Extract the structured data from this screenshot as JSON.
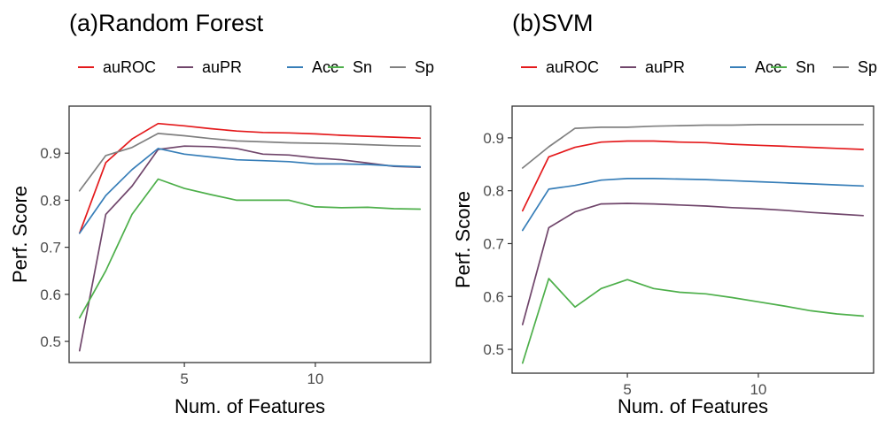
{
  "chart_data": [
    {
      "type": "line",
      "title": "(a)Random Forest",
      "xlabel": "Num. of Features",
      "ylabel": "Perf. Score",
      "xlim": [
        0.6,
        14.4
      ],
      "ylim": [
        0.455,
        1.0
      ],
      "x_ticks": [
        5,
        10
      ],
      "x_tick_labels": [
        "5",
        "10"
      ],
      "y_ticks": [
        0.5,
        0.6,
        0.7,
        0.8,
        0.9
      ],
      "y_tick_labels": [
        "0.5",
        "0.6",
        "0.7",
        "0.8",
        "0.9"
      ],
      "grid": false,
      "legend_position": "top",
      "x": [
        1,
        2,
        3,
        4,
        5,
        6,
        7,
        8,
        9,
        10,
        11,
        12,
        13,
        14
      ],
      "series": [
        {
          "name": "auROC",
          "color": "#e41a1c",
          "values": [
            0.73,
            0.88,
            0.93,
            0.963,
            0.958,
            0.952,
            0.947,
            0.944,
            0.943,
            0.941,
            0.938,
            0.936,
            0.934,
            0.932
          ]
        },
        {
          "name": "auPR",
          "color": "#70466b",
          "values": [
            0.48,
            0.77,
            0.83,
            0.908,
            0.915,
            0.914,
            0.91,
            0.898,
            0.896,
            0.89,
            0.886,
            0.879,
            0.872,
            0.87
          ]
        },
        {
          "name": "Acc",
          "color": "#377eb8",
          "values": [
            0.73,
            0.81,
            0.865,
            0.91,
            0.898,
            0.892,
            0.886,
            0.884,
            0.882,
            0.877,
            0.877,
            0.876,
            0.873,
            0.871
          ]
        },
        {
          "name": "Sn",
          "color": "#4daf4a",
          "values": [
            0.55,
            0.65,
            0.77,
            0.845,
            0.825,
            0.812,
            0.8,
            0.8,
            0.8,
            0.786,
            0.784,
            0.785,
            0.782,
            0.781
          ]
        },
        {
          "name": "Sp",
          "color": "#808080",
          "values": [
            0.82,
            0.895,
            0.912,
            0.942,
            0.937,
            0.931,
            0.926,
            0.924,
            0.922,
            0.921,
            0.92,
            0.918,
            0.916,
            0.915
          ]
        }
      ]
    },
    {
      "type": "line",
      "title": "(b)SVM",
      "xlabel": "Num. of Features",
      "ylabel": "Perf. Score",
      "xlim": [
        0.6,
        14.4
      ],
      "ylim": [
        0.455,
        0.96
      ],
      "x_ticks": [
        5,
        10
      ],
      "x_tick_labels": [
        "5",
        "10"
      ],
      "y_ticks": [
        0.5,
        0.6,
        0.7,
        0.8,
        0.9
      ],
      "y_tick_labels": [
        "0.5",
        "0.6",
        "0.7",
        "0.8",
        "0.9"
      ],
      "grid": false,
      "legend_position": "top",
      "x": [
        1,
        2,
        3,
        4,
        5,
        6,
        7,
        8,
        9,
        10,
        11,
        12,
        13,
        14
      ],
      "series": [
        {
          "name": "auROC",
          "color": "#e41a1c",
          "values": [
            0.762,
            0.864,
            0.882,
            0.892,
            0.894,
            0.894,
            0.892,
            0.891,
            0.888,
            0.886,
            0.884,
            0.882,
            0.88,
            0.878
          ]
        },
        {
          "name": "auPR",
          "color": "#70466b",
          "values": [
            0.547,
            0.73,
            0.76,
            0.775,
            0.776,
            0.775,
            0.773,
            0.771,
            0.768,
            0.766,
            0.763,
            0.759,
            0.756,
            0.753
          ]
        },
        {
          "name": "Acc",
          "color": "#377eb8",
          "values": [
            0.725,
            0.803,
            0.81,
            0.82,
            0.823,
            0.823,
            0.822,
            0.821,
            0.819,
            0.817,
            0.815,
            0.813,
            0.811,
            0.809
          ]
        },
        {
          "name": "Sn",
          "color": "#4daf4a",
          "values": [
            0.474,
            0.634,
            0.58,
            0.615,
            0.632,
            0.615,
            0.608,
            0.605,
            0.598,
            0.59,
            0.582,
            0.573,
            0.567,
            0.563
          ]
        },
        {
          "name": "Sp",
          "color": "#808080",
          "values": [
            0.843,
            0.883,
            0.918,
            0.92,
            0.92,
            0.922,
            0.923,
            0.924,
            0.924,
            0.925,
            0.925,
            0.925,
            0.925,
            0.925
          ]
        }
      ]
    }
  ]
}
